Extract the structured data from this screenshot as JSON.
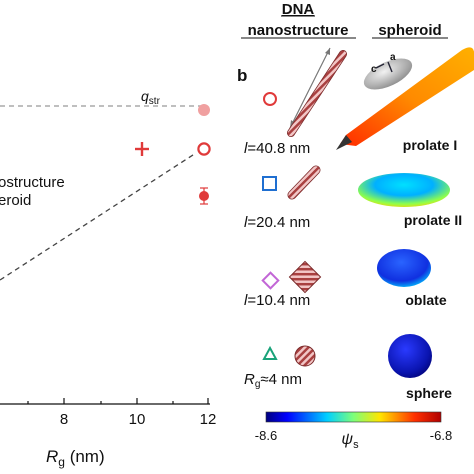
{
  "panel_a": {
    "qstr_label": "q",
    "qstr_sub": "str",
    "legend_line1": "ostructure",
    "legend_line2": "eroid",
    "x_label": "R",
    "x_label_sub": "g",
    "x_label_unit": " (nm)",
    "x_ticks": [
      "8",
      "10",
      "12"
    ],
    "colors": {
      "marker": "#e03a3a",
      "marker_light": "#f0a0a0",
      "dashed": "#444444",
      "qstr_line": "#aaaaaa"
    }
  },
  "panel_b": {
    "panel_letter": "b",
    "col_dna_line1": "DNA",
    "col_dna_line2": "nanostructure",
    "col_spheroid": "spheroid",
    "axis_a": "a",
    "axis_c": "c",
    "rows": [
      {
        "marker": "circle",
        "color": "#e03a3a",
        "label_prefix": "l",
        "label_value": "=40.8 nm",
        "shape_name": "prolate I"
      },
      {
        "marker": "square",
        "color": "#1f6fd1",
        "label_prefix": "l",
        "label_value": "=20.4 nm",
        "shape_name": "prolate II"
      },
      {
        "marker": "diamond",
        "color": "#c266d6",
        "label_prefix": "l",
        "label_value": "=10.4 nm",
        "shape_name": "oblate"
      },
      {
        "marker": "triangle",
        "color": "#1aa37a",
        "label_prefix": "R",
        "label_sub": "g",
        "label_value": "≈4 nm",
        "shape_name": "sphere"
      }
    ],
    "colorbar": {
      "min_label": "-8.6",
      "max_label": "-6.8",
      "symbol": "ψ",
      "symbol_sub": "s"
    }
  }
}
